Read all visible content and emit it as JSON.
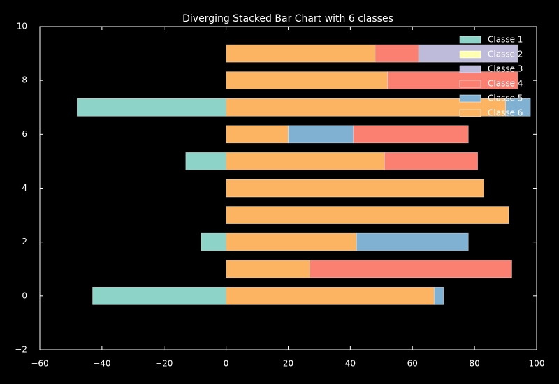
{
  "chart_data": {
    "type": "bar",
    "orientation": "horizontal",
    "stacked": true,
    "title": "Diverging Stacked Bar Chart with 6 classes",
    "y": [
      0,
      1,
      2,
      3,
      4,
      5,
      6,
      7,
      8,
      9
    ],
    "series": [
      {
        "name": "Classe 1",
        "color": "#8dd3c7",
        "values": [
          -43,
          0,
          -8,
          0,
          0,
          -13,
          0,
          -48,
          0,
          0
        ]
      },
      {
        "name": "Classe 2",
        "color": "#ffffb3",
        "values": [
          0,
          0,
          0,
          0,
          0,
          0,
          0,
          0,
          0,
          0
        ]
      },
      {
        "name": "Classe 3",
        "color": "#bebada",
        "values": [
          0,
          0,
          0,
          0,
          0,
          0,
          0,
          0,
          0,
          32
        ]
      },
      {
        "name": "Classe 4",
        "color": "#fb8072",
        "values": [
          0,
          65,
          0,
          0,
          0,
          30,
          37,
          0,
          42,
          14
        ]
      },
      {
        "name": "Classe 5",
        "color": "#80b1d3",
        "values": [
          3,
          0,
          36,
          0,
          0,
          0,
          21,
          8,
          0,
          0
        ]
      },
      {
        "name": "Classe 6",
        "color": "#fdb462",
        "values": [
          67,
          27,
          42,
          91,
          83,
          51,
          20,
          90,
          52,
          48
        ]
      }
    ],
    "xlim": [
      -60,
      100
    ],
    "xticks": [
      {
        "value": -60,
        "label": "−60"
      },
      {
        "value": -40,
        "label": "−40"
      },
      {
        "value": -20,
        "label": "−20"
      },
      0,
      20,
      40,
      60,
      80,
      100
    ],
    "ylim": [
      -2,
      10
    ],
    "yticks": [
      {
        "value": -2,
        "label": "−2"
      },
      0,
      2,
      4,
      6,
      8,
      10
    ],
    "legend": "upper right",
    "grid": false
  }
}
